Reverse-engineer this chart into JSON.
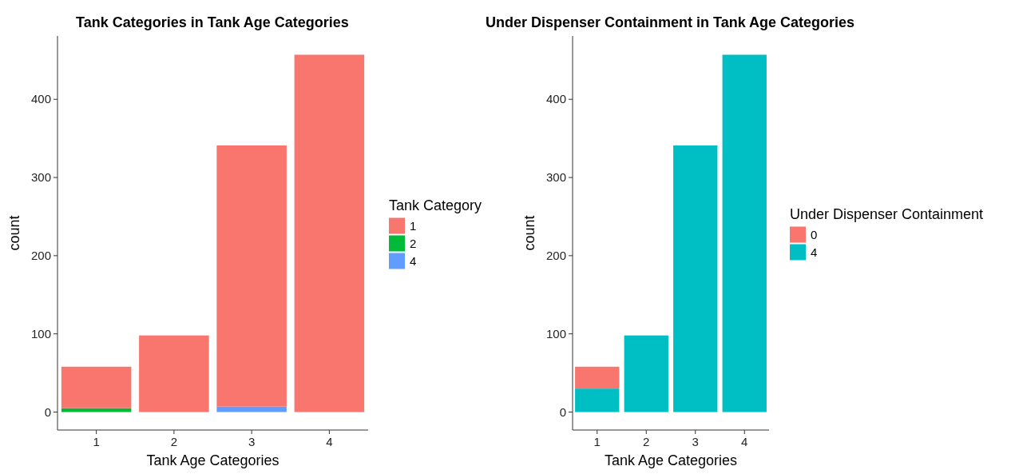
{
  "chart_data": [
    {
      "type": "bar",
      "title": "Tank Categories in Tank Age Categories",
      "xlabel": "Tank Age Categories",
      "ylabel": "count",
      "legend_title": "Tank Category",
      "categories": [
        "1",
        "2",
        "3",
        "4"
      ],
      "stacked": true,
      "legend": "right",
      "grid": false,
      "ylim": [
        -23,
        481
      ],
      "yticks": [
        0,
        100,
        200,
        300,
        400
      ],
      "series": [
        {
          "name": "4",
          "color": "#619cff",
          "values": [
            null,
            null,
            7,
            null
          ]
        },
        {
          "name": "2",
          "color": "#00ba38",
          "values": [
            5,
            null,
            null,
            null
          ]
        },
        {
          "name": "1",
          "color": "#f8766d",
          "values": [
            53,
            98,
            334,
            457
          ]
        }
      ]
    },
    {
      "type": "bar",
      "title": "Under Dispenser Containment in Tank Age Categories",
      "xlabel": "Tank Age Categories",
      "ylabel": "count",
      "legend_title": "Under Dispenser Containment",
      "categories": [
        "1",
        "2",
        "3",
        "4"
      ],
      "stacked": true,
      "legend": "right",
      "grid": false,
      "ylim": [
        -23,
        481
      ],
      "yticks": [
        0,
        100,
        200,
        300,
        400
      ],
      "series": [
        {
          "name": "4",
          "color": "#00bfc4",
          "values": [
            30,
            98,
            341,
            457
          ]
        },
        {
          "name": "0",
          "color": "#f8766d",
          "values": [
            28,
            null,
            null,
            null
          ]
        }
      ]
    }
  ]
}
